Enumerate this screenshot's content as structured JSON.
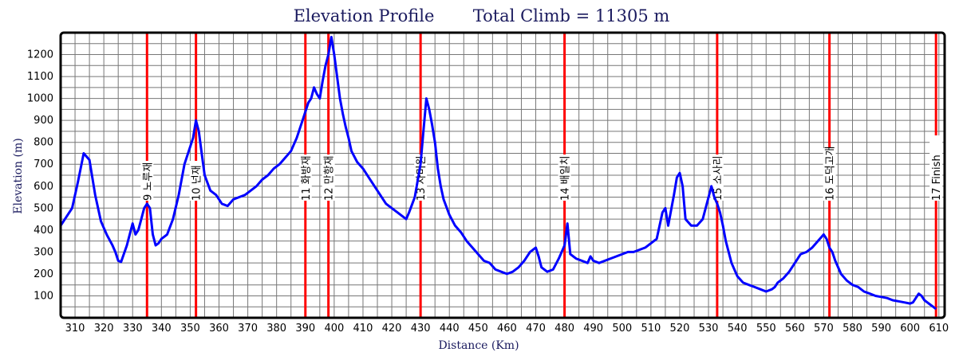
{
  "chart_data": {
    "type": "line",
    "title": "Elevation Profile",
    "subtitle": "Total Climb = 11305 m",
    "xlabel": "Distance (Km)",
    "ylabel": "Elevation (m)",
    "xlim": [
      305,
      612
    ],
    "ylim": [
      0,
      1300
    ],
    "xticks": [
      310,
      320,
      330,
      340,
      350,
      360,
      370,
      380,
      390,
      400,
      410,
      420,
      430,
      440,
      450,
      460,
      470,
      480,
      490,
      500,
      510,
      520,
      530,
      540,
      550,
      560,
      570,
      580,
      590,
      600,
      610
    ],
    "yticks": [
      100,
      200,
      300,
      400,
      500,
      600,
      700,
      800,
      900,
      1000,
      1100,
      1200
    ],
    "grid": true,
    "line_color": "#0000ff",
    "marker_color": "#ff0000",
    "markers": [
      {
        "x": 335,
        "label": "9 노루재"
      },
      {
        "x": 352,
        "label": "10 넌재"
      },
      {
        "x": 390,
        "label": "11 화방재"
      },
      {
        "x": 398,
        "label": "12 만항재"
      },
      {
        "x": 430,
        "label": "13 자미원"
      },
      {
        "x": 480,
        "label": "14 배일치"
      },
      {
        "x": 533,
        "label": "15 소사리"
      },
      {
        "x": 572,
        "label": "16 도덕고개"
      },
      {
        "x": 609,
        "label": "17 Finish"
      }
    ],
    "series": [
      {
        "x": [
          305,
          307,
          309,
          311,
          313,
          315,
          317,
          319,
          321,
          323,
          324,
          325,
          326,
          328,
          330,
          331,
          332,
          333,
          334,
          335,
          336,
          337,
          338,
          339,
          340,
          342,
          344,
          346,
          348,
          350,
          351,
          352,
          353,
          354,
          355,
          357,
          359,
          361,
          363,
          365,
          367,
          369,
          371,
          373,
          375,
          377,
          379,
          381,
          383,
          385,
          387,
          389,
          390,
          391,
          392,
          393,
          394,
          395,
          396,
          397,
          398,
          399,
          400,
          401,
          402,
          403,
          404,
          405,
          406,
          408,
          410,
          412,
          414,
          416,
          418,
          420,
          422,
          424,
          425,
          426,
          428,
          430,
          431,
          432,
          433,
          434,
          435,
          436,
          437,
          438,
          440,
          442,
          444,
          446,
          448,
          450,
          452,
          454,
          456,
          458,
          460,
          462,
          464,
          466,
          468,
          470,
          471,
          472,
          474,
          476,
          478,
          480,
          481,
          482,
          484,
          486,
          488,
          489,
          490,
          492,
          494,
          496,
          498,
          500,
          502,
          504,
          506,
          508,
          510,
          512,
          514,
          515,
          516,
          518,
          519,
          520,
          521,
          522,
          524,
          526,
          528,
          530,
          531,
          532,
          533,
          534,
          535,
          536,
          538,
          540,
          542,
          544,
          546,
          548,
          550,
          552,
          553,
          554,
          556,
          558,
          560,
          562,
          564,
          566,
          568,
          570,
          571,
          572,
          573,
          574,
          576,
          578,
          580,
          582,
          584,
          586,
          588,
          590,
          592,
          594,
          596,
          598,
          600,
          601,
          602,
          603,
          604,
          605,
          606,
          607,
          608,
          609
        ],
        "y": [
          420,
          460,
          500,
          620,
          750,
          720,
          560,
          440,
          380,
          330,
          300,
          260,
          255,
          330,
          430,
          380,
          400,
          450,
          500,
          520,
          500,
          380,
          330,
          340,
          360,
          380,
          450,
          560,
          700,
          780,
          820,
          900,
          850,
          750,
          650,
          580,
          560,
          520,
          510,
          540,
          550,
          560,
          580,
          600,
          630,
          650,
          680,
          700,
          730,
          760,
          820,
          900,
          940,
          980,
          1000,
          1050,
          1020,
          1000,
          1080,
          1150,
          1200,
          1280,
          1200,
          1100,
          1000,
          930,
          870,
          820,
          760,
          710,
          680,
          640,
          600,
          560,
          520,
          500,
          480,
          460,
          450,
          480,
          550,
          700,
          850,
          1000,
          950,
          880,
          800,
          680,
          600,
          540,
          470,
          420,
          390,
          350,
          320,
          290,
          260,
          250,
          220,
          210,
          200,
          210,
          230,
          260,
          300,
          320,
          280,
          230,
          210,
          220,
          270,
          330,
          430,
          290,
          270,
          260,
          250,
          280,
          260,
          250,
          260,
          270,
          280,
          290,
          300,
          300,
          310,
          320,
          340,
          360,
          480,
          500,
          420,
          560,
          640,
          660,
          600,
          450,
          420,
          420,
          450,
          550,
          600,
          550,
          520,
          480,
          420,
          350,
          250,
          190,
          160,
          150,
          140,
          130,
          120,
          130,
          140,
          160,
          180,
          210,
          250,
          290,
          300,
          320,
          350,
          380,
          360,
          320,
          300,
          260,
          200,
          170,
          150,
          140,
          120,
          110,
          100,
          95,
          90,
          80,
          75,
          70,
          65,
          70,
          90,
          110,
          100,
          80,
          70,
          60,
          50,
          40
        ]
      }
    ]
  }
}
